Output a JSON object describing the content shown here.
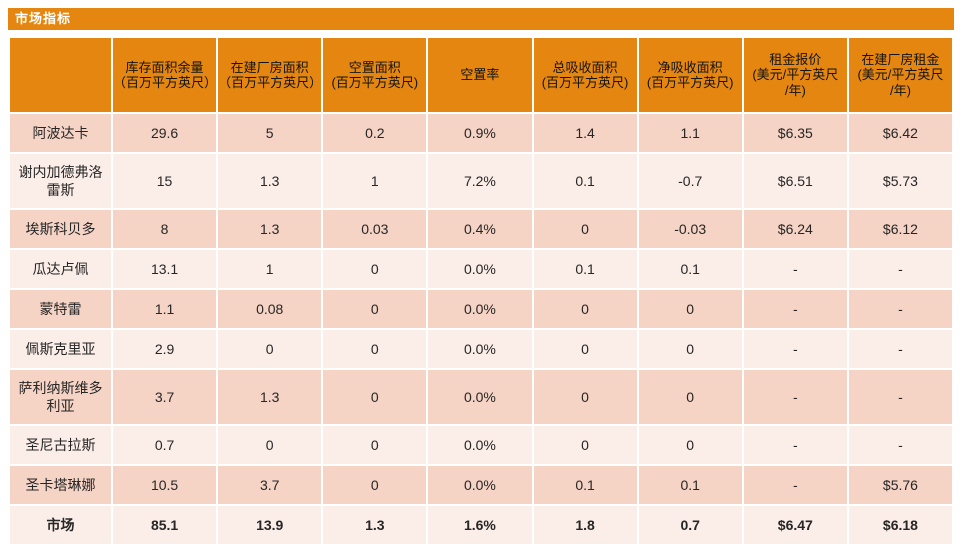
{
  "chart_data": {
    "type": "table",
    "title": "市场指标",
    "columns": [
      "",
      "库存面积余量\n（百万平方英尺）",
      "在建厂房面积\n（百万平方英尺）",
      "空置面积\n(百万平方英尺)",
      "空置率",
      "总吸收面积\n(百万平方英尺)",
      "净吸收面积\n(百万平方英尺)",
      "租金报价\n(美元/平方英尺\n/年)",
      "在建厂房租金\n(美元/平方英尺\n/年)"
    ],
    "rows": [
      [
        "阿波达卡",
        "29.6",
        "5",
        "0.2",
        "0.9%",
        "1.4",
        "1.1",
        "$6.35",
        "$6.42"
      ],
      [
        "谢内加德弗洛雷斯",
        "15",
        "1.3",
        "1",
        "7.2%",
        "0.1",
        "-0.7",
        "$6.51",
        "$5.73"
      ],
      [
        "埃斯科贝多",
        "8",
        "1.3",
        "0.03",
        "0.4%",
        "0",
        "-0.03",
        "$6.24",
        "$6.12"
      ],
      [
        "瓜达卢佩",
        "13.1",
        "1",
        "0",
        "0.0%",
        "0.1",
        "0.1",
        "-",
        "-"
      ],
      [
        "蒙特雷",
        "1.1",
        "0.08",
        "0",
        "0.0%",
        "0",
        "0",
        "-",
        "-"
      ],
      [
        "佩斯克里亚",
        "2.9",
        "0",
        "0",
        "0.0%",
        "0",
        "0",
        "-",
        "-"
      ],
      [
        "萨利纳斯维多利亚",
        "3.7",
        "1.3",
        "0",
        "0.0%",
        "0",
        "0",
        "-",
        "-"
      ],
      [
        "圣尼古拉斯",
        "0.7",
        "0",
        "0",
        "0.0%",
        "0",
        "0",
        "-",
        "-"
      ],
      [
        "圣卡塔琳娜",
        "10.5",
        "3.7",
        "0",
        "0.0%",
        "0.1",
        "0.1",
        "-",
        "$5.76"
      ]
    ],
    "total_row": [
      "市场",
      "85.1",
      "13.9",
      "1.3",
      "1.6%",
      "1.8",
      "0.7",
      "$6.47",
      "$6.18"
    ],
    "layout_hints": {
      "banding": "alternating rows, first data row dark",
      "grid": "white 2px gridlines",
      "total_row_style": "bold"
    },
    "colors": {
      "accent": "#E48610",
      "band_dark": "#F5D3C5",
      "band_light": "#FBEDE7",
      "title_text": "#FFFFFF",
      "header_text": "#141414",
      "cell_text": "#262626"
    }
  }
}
